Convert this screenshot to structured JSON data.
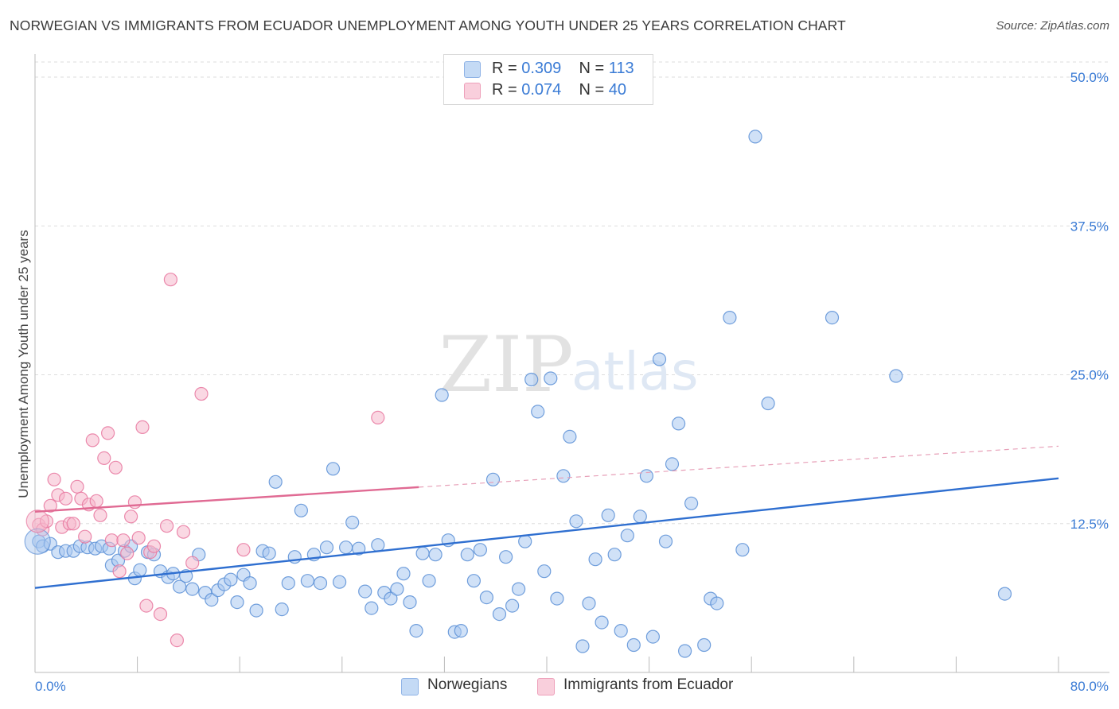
{
  "title": "NORWEGIAN VS IMMIGRANTS FROM ECUADOR UNEMPLOYMENT AMONG YOUTH UNDER 25 YEARS CORRELATION CHART",
  "source": "Source: ZipAtlas.com",
  "watermark": {
    "zip": "ZIP",
    "atlas": "atlas"
  },
  "legend_top": [
    {
      "r_label": "R =",
      "r_value": "0.309",
      "n_label": "N =",
      "n_value": "113",
      "color": "#a9c8f0"
    },
    {
      "r_label": "R =",
      "r_value": "0.074",
      "n_label": "N =",
      "n_value": "40",
      "color": "#f6b8cc"
    }
  ],
  "legend_bottom": [
    {
      "label": "Norwegians",
      "color": "#a9c8f0"
    },
    {
      "label": "Immigrants from Ecuador",
      "color": "#f6b8cc"
    }
  ],
  "chart_data": {
    "type": "scatter",
    "title": "NORWEGIAN VS IMMIGRANTS FROM ECUADOR UNEMPLOYMENT AMONG YOUTH UNDER 25 YEARS CORRELATION CHART",
    "xlabel": "",
    "ylabel": "Unemployment Among Youth under 25 years",
    "xlim": [
      0,
      80
    ],
    "ylim": [
      0,
      50
    ],
    "x_tick_labels": [
      "0.0%",
      "80.0%"
    ],
    "y_tick_labels": [
      "12.5%",
      "25.0%",
      "37.5%",
      "50.0%"
    ],
    "y_ticks": [
      12.5,
      25.0,
      37.5,
      50.0
    ],
    "grid": true,
    "series": [
      {
        "name": "Norwegians",
        "color": "#5b8fd6",
        "fill": "#a9c8f0",
        "trend": {
          "x0": 0,
          "y0": 7.1,
          "x1": 80,
          "y1": 16.3,
          "solid_to": 80
        },
        "points": [
          [
            0.3,
            11.0
          ],
          [
            0.6,
            10.6
          ],
          [
            1.2,
            10.8
          ],
          [
            1.8,
            10.1
          ],
          [
            2.4,
            10.2
          ],
          [
            3.0,
            10.2
          ],
          [
            3.5,
            10.6
          ],
          [
            4.1,
            10.5
          ],
          [
            4.7,
            10.4
          ],
          [
            5.2,
            10.6
          ],
          [
            5.8,
            10.4
          ],
          [
            6.0,
            9.0
          ],
          [
            6.5,
            9.4
          ],
          [
            7.0,
            10.2
          ],
          [
            7.5,
            10.6
          ],
          [
            7.8,
            7.9
          ],
          [
            8.2,
            8.6
          ],
          [
            8.8,
            10.1
          ],
          [
            9.3,
            9.9
          ],
          [
            9.8,
            8.5
          ],
          [
            10.4,
            8.0
          ],
          [
            10.8,
            8.3
          ],
          [
            11.3,
            7.2
          ],
          [
            11.8,
            8.1
          ],
          [
            12.3,
            7.0
          ],
          [
            12.8,
            9.9
          ],
          [
            13.3,
            6.7
          ],
          [
            13.8,
            6.1
          ],
          [
            14.3,
            6.9
          ],
          [
            14.8,
            7.4
          ],
          [
            15.3,
            7.8
          ],
          [
            15.8,
            5.9
          ],
          [
            16.3,
            8.2
          ],
          [
            16.8,
            7.5
          ],
          [
            17.3,
            5.2
          ],
          [
            17.8,
            10.2
          ],
          [
            18.3,
            10.0
          ],
          [
            18.8,
            16.0
          ],
          [
            19.3,
            5.3
          ],
          [
            19.8,
            7.5
          ],
          [
            20.3,
            9.7
          ],
          [
            20.8,
            13.6
          ],
          [
            21.3,
            7.7
          ],
          [
            21.8,
            9.9
          ],
          [
            22.3,
            7.5
          ],
          [
            22.8,
            10.5
          ],
          [
            23.3,
            17.1
          ],
          [
            23.8,
            7.6
          ],
          [
            24.3,
            10.5
          ],
          [
            24.8,
            12.6
          ],
          [
            25.3,
            10.4
          ],
          [
            25.8,
            6.8
          ],
          [
            26.3,
            5.4
          ],
          [
            26.8,
            10.7
          ],
          [
            27.3,
            6.7
          ],
          [
            27.8,
            6.2
          ],
          [
            28.3,
            7.0
          ],
          [
            28.8,
            8.3
          ],
          [
            29.3,
            5.9
          ],
          [
            29.8,
            3.5
          ],
          [
            30.3,
            10.0
          ],
          [
            30.8,
            7.7
          ],
          [
            31.3,
            9.9
          ],
          [
            31.8,
            23.3
          ],
          [
            32.3,
            11.1
          ],
          [
            32.8,
            3.4
          ],
          [
            33.3,
            3.5
          ],
          [
            33.8,
            9.9
          ],
          [
            34.3,
            7.7
          ],
          [
            34.8,
            10.3
          ],
          [
            35.3,
            6.3
          ],
          [
            35.8,
            16.2
          ],
          [
            36.3,
            4.9
          ],
          [
            36.8,
            9.7
          ],
          [
            37.3,
            5.6
          ],
          [
            37.8,
            7.0
          ],
          [
            38.3,
            11.0
          ],
          [
            38.8,
            24.6
          ],
          [
            39.3,
            21.9
          ],
          [
            39.8,
            8.5
          ],
          [
            40.3,
            24.7
          ],
          [
            40.8,
            6.2
          ],
          [
            41.3,
            16.5
          ],
          [
            41.8,
            19.8
          ],
          [
            42.3,
            12.7
          ],
          [
            42.8,
            2.2
          ],
          [
            43.3,
            5.8
          ],
          [
            43.8,
            9.5
          ],
          [
            44.3,
            4.2
          ],
          [
            44.8,
            13.2
          ],
          [
            45.3,
            9.9
          ],
          [
            45.8,
            3.5
          ],
          [
            46.3,
            11.5
          ],
          [
            46.8,
            2.3
          ],
          [
            47.3,
            13.1
          ],
          [
            47.8,
            16.5
          ],
          [
            48.3,
            3.0
          ],
          [
            48.8,
            26.3
          ],
          [
            49.3,
            11.0
          ],
          [
            49.8,
            17.5
          ],
          [
            50.3,
            20.9
          ],
          [
            50.8,
            1.8
          ],
          [
            51.3,
            14.2
          ],
          [
            52.3,
            2.3
          ],
          [
            52.8,
            6.2
          ],
          [
            53.3,
            5.8
          ],
          [
            54.3,
            29.8
          ],
          [
            55.3,
            10.3
          ],
          [
            56.3,
            45.0
          ],
          [
            57.3,
            22.6
          ],
          [
            62.3,
            29.8
          ],
          [
            67.3,
            24.9
          ],
          [
            75.8,
            6.6
          ]
        ]
      },
      {
        "name": "Immigrants from Ecuador",
        "color": "#e8779f",
        "fill": "#f6b8cc",
        "trend": {
          "x0": 0,
          "y0": 13.5,
          "x1": 80,
          "y1": 19.0,
          "solid_to": 30
        },
        "points": [
          [
            0.3,
            12.4
          ],
          [
            0.6,
            12.0
          ],
          [
            0.9,
            12.7
          ],
          [
            1.2,
            14.0
          ],
          [
            1.5,
            16.2
          ],
          [
            1.8,
            14.9
          ],
          [
            2.1,
            12.2
          ],
          [
            2.4,
            14.6
          ],
          [
            2.7,
            12.5
          ],
          [
            3.0,
            12.5
          ],
          [
            3.3,
            15.6
          ],
          [
            3.6,
            14.6
          ],
          [
            3.9,
            11.4
          ],
          [
            4.2,
            14.1
          ],
          [
            4.5,
            19.5
          ],
          [
            4.8,
            14.4
          ],
          [
            5.1,
            13.2
          ],
          [
            5.4,
            18.0
          ],
          [
            5.7,
            20.1
          ],
          [
            6.0,
            11.1
          ],
          [
            6.3,
            17.2
          ],
          [
            6.6,
            8.5
          ],
          [
            6.9,
            11.1
          ],
          [
            7.2,
            10.0
          ],
          [
            7.5,
            13.1
          ],
          [
            7.8,
            14.3
          ],
          [
            8.1,
            11.3
          ],
          [
            8.4,
            20.6
          ],
          [
            8.7,
            5.6
          ],
          [
            9.0,
            10.1
          ],
          [
            9.3,
            10.6
          ],
          [
            9.8,
            4.9
          ],
          [
            10.3,
            12.3
          ],
          [
            10.6,
            33.0
          ],
          [
            11.1,
            2.7
          ],
          [
            11.6,
            11.8
          ],
          [
            12.3,
            9.2
          ],
          [
            13.0,
            23.4
          ],
          [
            16.3,
            10.3
          ],
          [
            26.8,
            21.4
          ]
        ]
      }
    ]
  }
}
